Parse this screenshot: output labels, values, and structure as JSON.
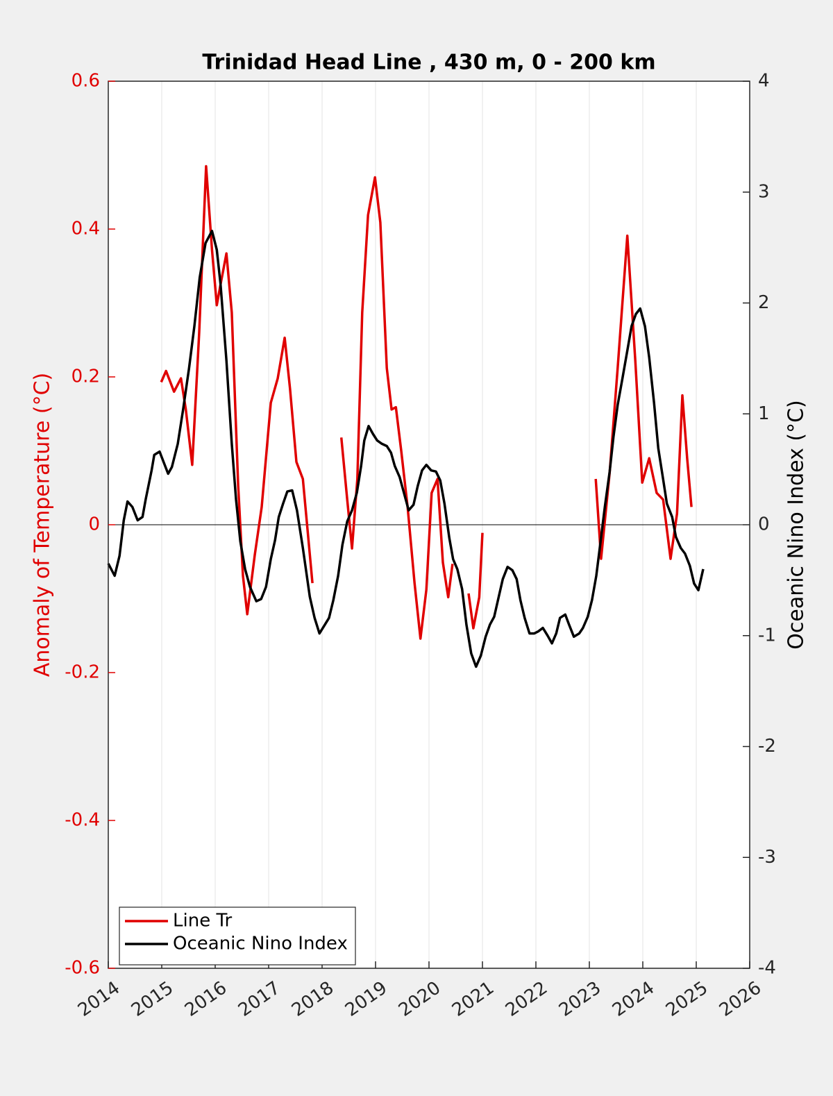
{
  "chart_data": {
    "type": "line",
    "title": "Trinidad Head Line , 430 m, 0 - 200 km",
    "ylabel": "Anomaly of Temperature (°C)",
    "y2label": "Oceanic Nino Index (°C)",
    "xlim": [
      2014,
      2026
    ],
    "xticks": [
      2014,
      2015,
      2016,
      2017,
      2018,
      2019,
      2020,
      2021,
      2022,
      2023,
      2024,
      2025,
      2026
    ],
    "ylim": [
      -0.6,
      0.6
    ],
    "yticks": [
      -0.6,
      -0.4,
      -0.2,
      0,
      0.2,
      0.4,
      0.6
    ],
    "y2lim": [
      -4,
      4
    ],
    "y2ticks": [
      -4,
      -3,
      -2,
      -1,
      0,
      1,
      2,
      3,
      4
    ],
    "grid": true,
    "legend": "lower left",
    "series": [
      {
        "name": "Line Tr",
        "color": "#e00000",
        "x": [
          2014.99,
          2015.08,
          2015.23,
          2015.36,
          2015.45,
          2015.57,
          2015.7,
          2015.83,
          2015.94,
          2016.03,
          2016.1,
          2016.21,
          2016.31,
          2016.43,
          2016.52,
          2016.6,
          2016.74,
          2016.87,
          2017.04,
          2017.17,
          2017.3,
          2017.4,
          2017.52,
          2017.64,
          2017.82,
          null,
          2018.36,
          2018.47,
          2018.56,
          2018.66,
          2018.75,
          2018.86,
          2018.99,
          2019.09,
          2019.21,
          2019.3,
          2019.38,
          2019.48,
          2019.6,
          2019.73,
          2019.84,
          2019.95,
          2020.05,
          2020.16,
          2020.26,
          2020.36,
          2020.44,
          null,
          2020.74,
          2020.83,
          2020.94,
          2021.0,
          null,
          2023.12,
          2023.22,
          2023.38,
          2023.53,
          2023.71,
          2023.86,
          2023.99,
          2024.12,
          2024.26,
          2024.38,
          2024.52,
          2024.64,
          2024.74,
          2024.83,
          2024.91
        ],
        "values": [
          0.193,
          0.208,
          0.18,
          0.198,
          0.156,
          0.081,
          0.259,
          0.485,
          0.372,
          0.297,
          0.325,
          0.367,
          0.287,
          0.053,
          -0.069,
          -0.121,
          -0.041,
          0.024,
          0.165,
          0.198,
          0.253,
          0.184,
          0.085,
          0.062,
          -0.079,
          null,
          0.118,
          0.034,
          -0.032,
          0.062,
          0.287,
          0.419,
          0.47,
          0.409,
          0.212,
          0.156,
          0.159,
          0.1,
          0.024,
          -0.079,
          -0.154,
          -0.088,
          0.043,
          0.062,
          -0.051,
          -0.098,
          -0.053,
          null,
          -0.093,
          -0.14,
          -0.098,
          -0.011,
          null,
          0.062,
          -0.046,
          0.071,
          0.212,
          0.391,
          0.222,
          0.057,
          0.09,
          0.043,
          0.034,
          -0.046,
          0.015,
          0.175,
          0.09,
          0.024
        ]
      },
      {
        "name": "Oceanic Nino Index",
        "color": "#000000",
        "axis": "y2",
        "x": [
          2014.0,
          2014.12,
          2014.21,
          2014.29,
          2014.36,
          2014.45,
          2014.55,
          2014.64,
          2014.7,
          2014.81,
          2014.86,
          2014.96,
          2015.12,
          2015.19,
          2015.3,
          2015.4,
          2015.51,
          2015.61,
          2015.71,
          2015.82,
          2015.94,
          2016.03,
          2016.1,
          2016.21,
          2016.31,
          2016.39,
          2016.47,
          2016.56,
          2016.65,
          2016.77,
          2016.86,
          2016.95,
          2017.04,
          2017.12,
          2017.19,
          2017.27,
          2017.35,
          2017.44,
          2017.53,
          2017.64,
          2017.77,
          2017.86,
          2017.95,
          2018.04,
          2018.13,
          2018.21,
          2018.3,
          2018.38,
          2018.47,
          2018.56,
          2018.65,
          2018.73,
          2018.79,
          2018.87,
          2018.95,
          2019.03,
          2019.12,
          2019.21,
          2019.29,
          2019.36,
          2019.45,
          2019.53,
          2019.62,
          2019.71,
          2019.79,
          2019.87,
          2019.95,
          2020.04,
          2020.13,
          2020.21,
          2020.29,
          2020.38,
          2020.45,
          2020.53,
          2020.62,
          2020.7,
          2020.79,
          2020.88,
          2020.97,
          2021.06,
          2021.14,
          2021.22,
          2021.3,
          2021.38,
          2021.47,
          2021.56,
          2021.64,
          2021.71,
          2021.79,
          2021.88,
          2021.97,
          2022.05,
          2022.13,
          2022.22,
          2022.3,
          2022.38,
          2022.45,
          2022.55,
          2022.62,
          2022.71,
          2022.81,
          2022.88,
          2022.97,
          2023.05,
          2023.13,
          2023.21,
          2023.29,
          2023.38,
          2023.45,
          2023.53,
          2023.62,
          2023.71,
          2023.79,
          2023.87,
          2023.95,
          2024.04,
          2024.12,
          2024.21,
          2024.29,
          2024.38,
          2024.45,
          2024.55,
          2024.62,
          2024.71,
          2024.79,
          2024.88,
          2024.96,
          2025.04,
          2025.13
        ],
        "values": [
          -0.35,
          -0.46,
          -0.28,
          0.04,
          0.21,
          0.16,
          0.04,
          0.07,
          0.23,
          0.49,
          0.63,
          0.66,
          0.46,
          0.52,
          0.73,
          1.04,
          1.41,
          1.79,
          2.23,
          2.54,
          2.65,
          2.48,
          2.17,
          1.48,
          0.73,
          0.23,
          -0.15,
          -0.4,
          -0.56,
          -0.69,
          -0.67,
          -0.56,
          -0.31,
          -0.14,
          0.07,
          0.19,
          0.3,
          0.31,
          0.13,
          -0.21,
          -0.65,
          -0.84,
          -0.98,
          -0.91,
          -0.84,
          -0.68,
          -0.46,
          -0.18,
          0.03,
          0.13,
          0.29,
          0.53,
          0.76,
          0.89,
          0.82,
          0.76,
          0.73,
          0.71,
          0.65,
          0.53,
          0.43,
          0.29,
          0.13,
          0.18,
          0.35,
          0.49,
          0.54,
          0.49,
          0.48,
          0.4,
          0.19,
          -0.12,
          -0.31,
          -0.4,
          -0.58,
          -0.9,
          -1.16,
          -1.28,
          -1.18,
          -1.01,
          -0.9,
          -0.83,
          -0.66,
          -0.49,
          -0.38,
          -0.41,
          -0.49,
          -0.68,
          -0.84,
          -0.98,
          -0.98,
          -0.96,
          -0.93,
          -1.0,
          -1.07,
          -0.98,
          -0.84,
          -0.81,
          -0.9,
          -1.01,
          -0.98,
          -0.93,
          -0.83,
          -0.68,
          -0.46,
          -0.15,
          0.16,
          0.48,
          0.79,
          1.08,
          1.32,
          1.57,
          1.79,
          1.9,
          1.95,
          1.79,
          1.51,
          1.1,
          0.69,
          0.41,
          0.19,
          0.07,
          -0.11,
          -0.21,
          -0.26,
          -0.37,
          -0.53,
          -0.59,
          -0.4
        ]
      }
    ]
  }
}
